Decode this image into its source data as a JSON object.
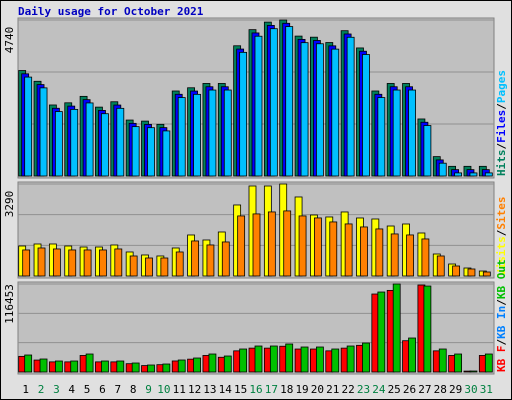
{
  "title": "Daily usage for October 2021",
  "chart_data": [
    {
      "type": "bar",
      "ylim": [
        0,
        4740
      ],
      "yticks": [
        4740
      ],
      "separator": "/",
      "series": [
        {
          "name": "Hits",
          "color": "#00805c",
          "values": [
            3205,
            2878,
            2158,
            2224,
            2420,
            2093,
            2256,
            1700,
            1668,
            1570,
            2583,
            2681,
            2812,
            2812,
            3957,
            4447,
            4676,
            4740,
            4251,
            4218,
            4055,
            4415,
            3891,
            2583,
            2812,
            2812,
            1733,
            589,
            294,
            294,
            294
          ]
        },
        {
          "name": "Files",
          "color": "#0000ff",
          "values": [
            3105,
            2778,
            2058,
            2124,
            2320,
            1993,
            2156,
            1600,
            1568,
            1470,
            2483,
            2581,
            2712,
            2712,
            3857,
            4347,
            4576,
            4640,
            4151,
            4118,
            3955,
            4315,
            3791,
            2483,
            2712,
            2712,
            1633,
            489,
            194,
            194,
            194
          ]
        },
        {
          "name": "Pages",
          "color": "#00c0ff",
          "values": [
            3005,
            2678,
            1958,
            2024,
            2220,
            1893,
            2056,
            1500,
            1468,
            1370,
            2383,
            2481,
            2612,
            2612,
            3757,
            4247,
            4476,
            4540,
            4051,
            4018,
            3855,
            4215,
            3691,
            2383,
            2612,
            2612,
            1533,
            389,
            94,
            94,
            94
          ]
        }
      ]
    },
    {
      "type": "bar",
      "ylim": [
        0,
        3290
      ],
      "yticks": [
        3290
      ],
      "separator": "/",
      "series": [
        {
          "name": "Visits",
          "color": "#ffff00",
          "values": [
            1073,
            1145,
            1145,
            1073,
            1037,
            1037,
            1109,
            859,
            752,
            716,
            1002,
            1467,
            1288,
            1574,
            2540,
            3219,
            3219,
            3290,
            2826,
            2182,
            2111,
            2290,
            2075,
            2039,
            1788,
            1860,
            1538,
            787,
            429,
            286,
            178
          ]
        },
        {
          "name": "Sites",
          "color": "#ff8000",
          "values": [
            931,
            1002,
            967,
            931,
            931,
            931,
            967,
            716,
            644,
            644,
            859,
            1253,
            1110,
            1217,
            2148,
            2220,
            2291,
            2327,
            2148,
            2076,
            1933,
            1862,
            1754,
            1683,
            1504,
            1468,
            1325,
            716,
            358,
            251,
            143
          ]
        }
      ]
    },
    {
      "type": "bar",
      "ylim": [
        0,
        116453
      ],
      "yticks": [
        116453
      ],
      "separator": "/",
      "categories": [
        "1",
        "2",
        "3",
        "4",
        "5",
        "6",
        "7",
        "8",
        "9",
        "10",
        "11",
        "12",
        "13",
        "14",
        "15",
        "16",
        "17",
        "18",
        "19",
        "20",
        "21",
        "22",
        "23",
        "24",
        "25",
        "26",
        "27",
        "28",
        "29",
        "30",
        "31"
      ],
      "category_colors": [
        "#000000",
        "#008040",
        "#008040",
        "#000000",
        "#000000",
        "#000000",
        "#000000",
        "#000000",
        "#008040",
        "#008040",
        "#000000",
        "#000000",
        "#000000",
        "#000000",
        "#000000",
        "#008040",
        "#008040",
        "#000000",
        "#000000",
        "#000000",
        "#000000",
        "#000000",
        "#008040",
        "#008040",
        "#000000",
        "#000000",
        "#000000",
        "#000000",
        "#000000",
        "#008040",
        "#008040"
      ],
      "series": [
        {
          "name": "KB F",
          "color": "#ff0000",
          "values": [
            20700,
            15800,
            13400,
            13400,
            21900,
            13400,
            13400,
            11000,
            8500,
            9700,
            14600,
            17000,
            21900,
            19500,
            28000,
            31600,
            31600,
            34100,
            30400,
            30400,
            28000,
            31600,
            35300,
            103194,
            108000,
            41400,
            115101,
            28000,
            21900,
            1200,
            21900
          ]
        },
        {
          "name": "KB In",
          "color": "#0080ff",
          "values": [
            0,
            0,
            0,
            0,
            0,
            0,
            0,
            0,
            0,
            0,
            0,
            0,
            0,
            0,
            0,
            0,
            0,
            0,
            0,
            0,
            0,
            0,
            0,
            0,
            0,
            0,
            0,
            0,
            0,
            0,
            0
          ]
        },
        {
          "name": "KB Out",
          "color": "#00c000",
          "values": [
            22491,
            17199,
            14553,
            14553,
            23814,
            14553,
            14553,
            11907,
            9261,
            10584,
            15876,
            18522,
            23814,
            21168,
            30429,
            34398,
            34398,
            37044,
            33075,
            33075,
            30429,
            34398,
            38367,
            105840,
            116453,
            44982,
            113778,
            30429,
            23814,
            1323,
            23814
          ]
        }
      ]
    }
  ]
}
